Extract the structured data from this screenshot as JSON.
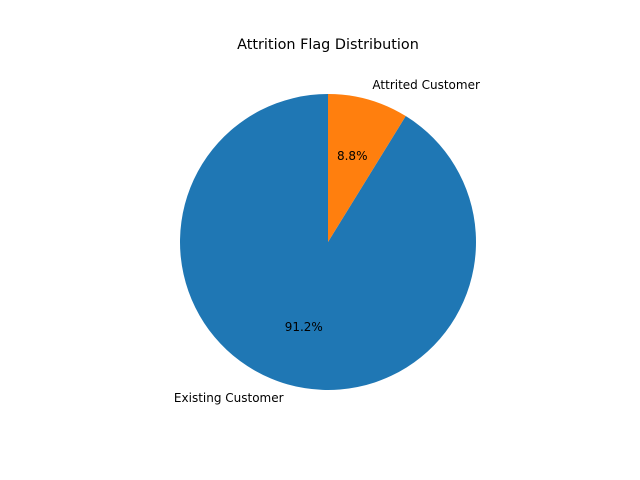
{
  "chart_data": {
    "type": "pie",
    "title": "Attrition Flag Distribution",
    "categories": [
      "Existing Customer",
      "Attrited Customer"
    ],
    "values": [
      91.2,
      8.8
    ],
    "percent_labels": [
      "91.2%",
      "8.8%"
    ],
    "colors": [
      "#1f77b4",
      "#ff7f0e"
    ],
    "start_angle_deg": 90,
    "direction": "counterclockwise",
    "legend": "none"
  }
}
